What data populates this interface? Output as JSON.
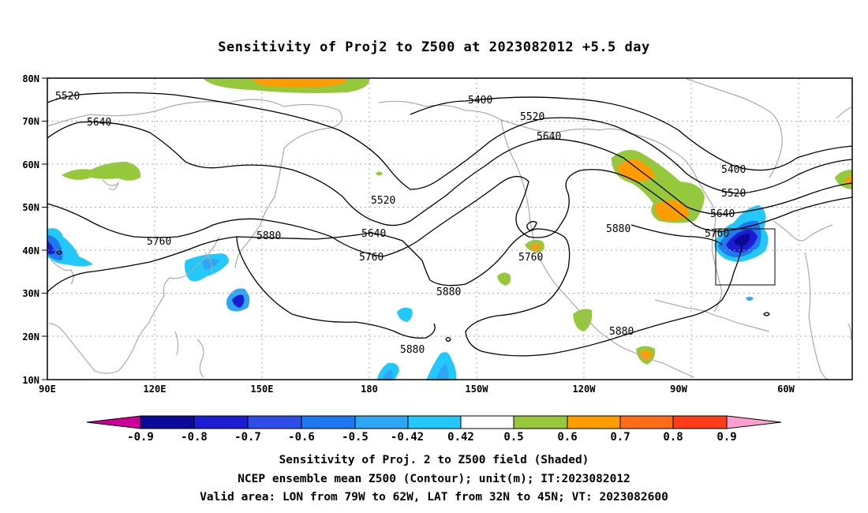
{
  "title": "Sensitivity of Proj2 to Z500 at 2023082012 +5.5 day",
  "lat_labels": [
    "80N",
    "70N",
    "60N",
    "50N",
    "40N",
    "30N",
    "20N",
    "10N"
  ],
  "lon_labels": [
    "90E",
    "120E",
    "150E",
    "180",
    "150W",
    "120W",
    "90W",
    "60W"
  ],
  "contour_labels": [
    "5520",
    "5640",
    "5400",
    "5520",
    "5640",
    "5400",
    "5520",
    "5640",
    "5760",
    "5520",
    "5640",
    "5760",
    "5760",
    "5880",
    "5880",
    "5880",
    "5880",
    "5880"
  ],
  "colorbar": {
    "labels": [
      "-0.9",
      "-0.8",
      "-0.7",
      "-0.6",
      "-0.5",
      "-0.42",
      "0.42",
      "0.5",
      "0.6",
      "0.7",
      "0.8",
      "0.9"
    ],
    "colors": [
      "#cc0099",
      "#0a0a96",
      "#1c1cd2",
      "#2d4de6",
      "#1f78ef",
      "#2ea6f5",
      "#22c8fa",
      "#ffffff",
      "#96c83c",
      "#ff9c00",
      "#ff6d19",
      "#ff3c19",
      "#ff0000",
      "#ff9fd0"
    ]
  },
  "colors": {
    "coast": "#aaaaaa",
    "contour": "#000000",
    "grid": "#aaaaaa"
  },
  "valid_area": {
    "lon_min": "79W",
    "lon_max": "62W",
    "lat_min": "32N",
    "lat_max": "45N"
  },
  "caption": [
    "Sensitivity of Proj. 2 to Z500 field (Shaded)",
    "NCEP ensemble mean Z500 (Contour); unit(m); IT:2023082012",
    "Valid area: LON from 79W to 62W, LAT from 32N to 45N; VT: 2023082600"
  ]
}
